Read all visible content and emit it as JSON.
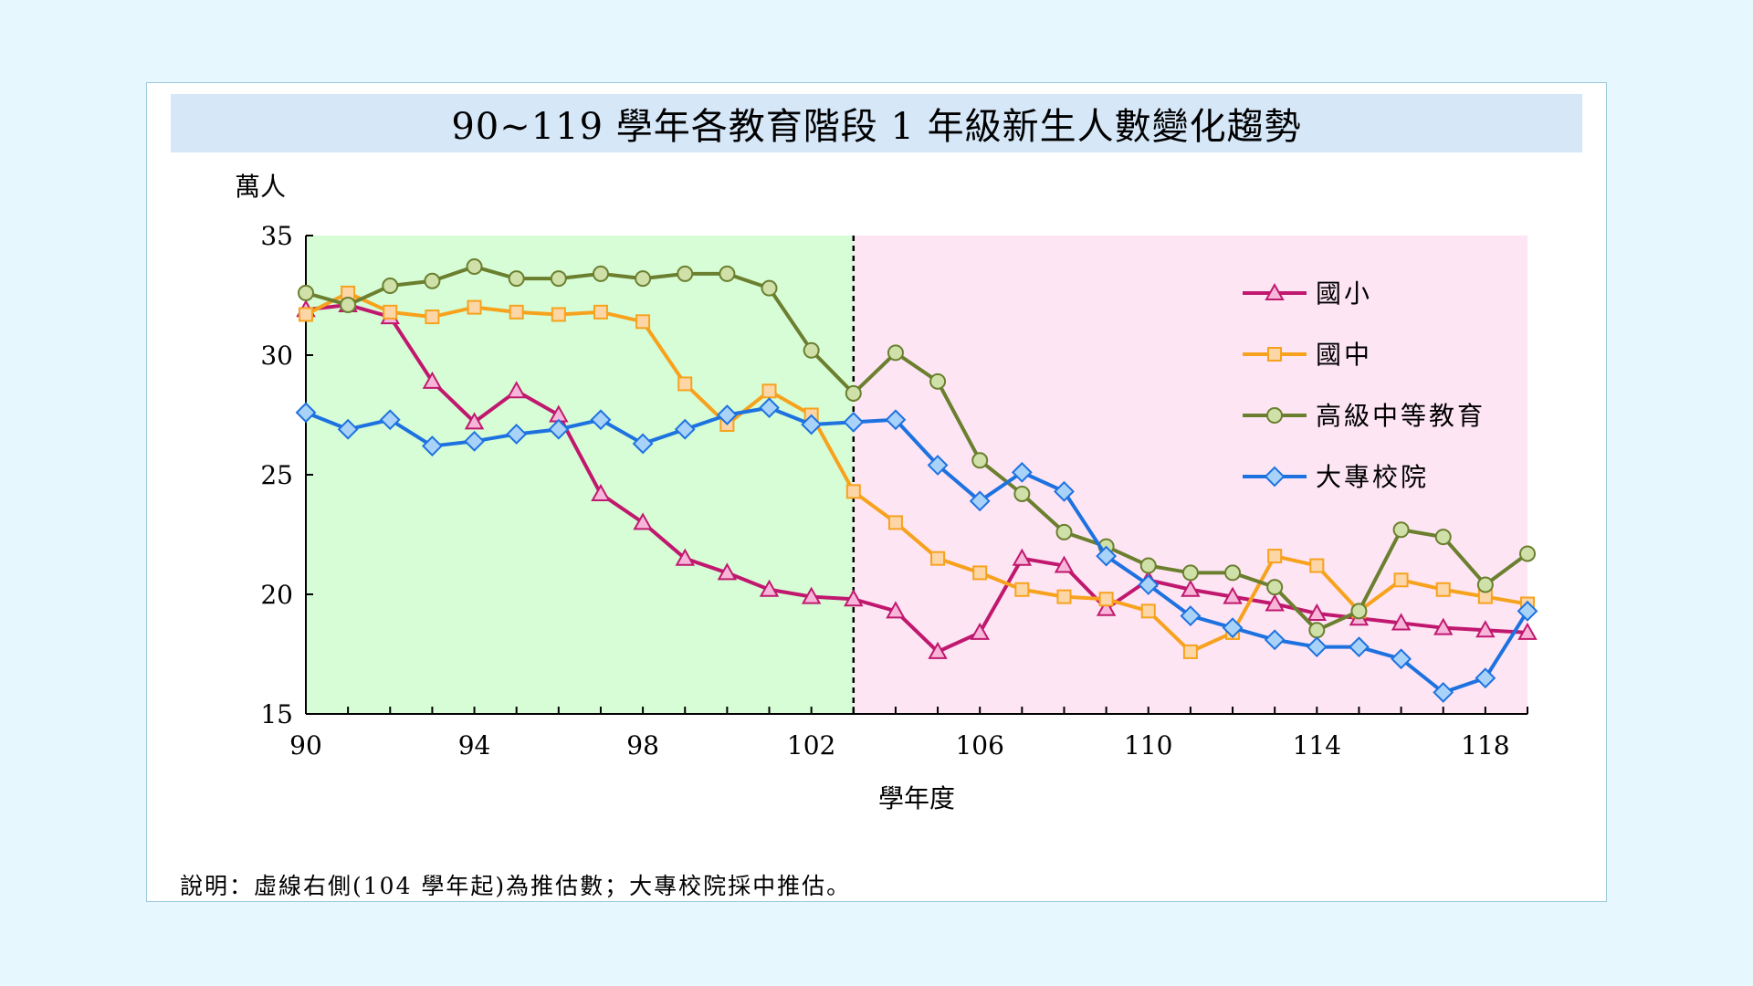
{
  "colors": {
    "page_bg": "#e6f7fd",
    "title_bg": "#d6e7f8",
    "history_region": "#d6fdd6",
    "projection_region": "#fde5f4",
    "primary": "#c0186e",
    "junior_high": "#f7a21d",
    "senior_high": "#6b7f2f",
    "college": "#1e72e0"
  },
  "chart_data": {
    "type": "line",
    "title": "90~119 學年各教育階段 1 年級新生人數變化趨勢",
    "ylabel": "萬人",
    "xlabel": "學年度",
    "ylim": [
      15,
      35
    ],
    "xlim": [
      90,
      119
    ],
    "y_ticks": [
      "35",
      "30",
      "25",
      "20",
      "15"
    ],
    "x_ticks": [
      "90",
      "94",
      "98",
      "102",
      "106",
      "110",
      "114",
      "118"
    ],
    "projection_start": 103,
    "legend_position": "top-right",
    "grid": false,
    "x": [
      90,
      91,
      92,
      93,
      94,
      95,
      96,
      97,
      98,
      99,
      100,
      101,
      102,
      103,
      104,
      105,
      106,
      107,
      108,
      109,
      110,
      111,
      112,
      113,
      114,
      115,
      116,
      117,
      118,
      119
    ],
    "series": [
      {
        "name": "國小",
        "color": "#c0186e",
        "marker": "triangle",
        "marker_fill": "#f7b6d9",
        "values": [
          31.9,
          32.1,
          31.6,
          28.9,
          27.2,
          28.5,
          27.5,
          24.2,
          23.0,
          21.5,
          20.9,
          20.2,
          19.9,
          19.8,
          19.3,
          17.6,
          18.4,
          21.5,
          21.2,
          19.4,
          20.6,
          20.2,
          19.9,
          19.6,
          19.2,
          19.0,
          18.8,
          18.6,
          18.5,
          18.4
        ]
      },
      {
        "name": "國中",
        "color": "#f7a21d",
        "marker": "square",
        "marker_fill": "#fdd6a8",
        "values": [
          31.7,
          32.6,
          31.8,
          31.6,
          32.0,
          31.8,
          31.7,
          31.8,
          31.4,
          28.8,
          27.1,
          28.5,
          27.5,
          24.3,
          23.0,
          21.5,
          20.9,
          20.2,
          19.9,
          19.8,
          19.3,
          17.6,
          18.4,
          21.6,
          21.2,
          19.3,
          20.6,
          20.2,
          19.9,
          19.6
        ]
      },
      {
        "name": "高級中等教育",
        "color": "#6b7f2f",
        "marker": "circle",
        "marker_fill": "#cfe0a8",
        "values": [
          32.6,
          32.1,
          32.9,
          33.1,
          33.7,
          33.2,
          33.2,
          33.4,
          33.2,
          33.4,
          33.4,
          32.8,
          30.2,
          28.4,
          30.1,
          28.9,
          25.6,
          24.2,
          22.6,
          22.0,
          21.2,
          20.9,
          20.9,
          20.3,
          18.5,
          19.3,
          22.7,
          22.4,
          20.4,
          21.7
        ]
      },
      {
        "name": "大專校院",
        "color": "#1e72e0",
        "marker": "diamond",
        "marker_fill": "#a8d2f7",
        "values": [
          27.6,
          26.9,
          27.3,
          26.2,
          26.4,
          26.7,
          26.9,
          27.3,
          26.3,
          26.9,
          27.5,
          27.8,
          27.1,
          27.2,
          27.3,
          25.4,
          23.9,
          25.1,
          24.3,
          21.6,
          20.4,
          19.1,
          18.6,
          18.1,
          17.8,
          17.8,
          17.3,
          15.9,
          16.5,
          19.3
        ]
      }
    ]
  },
  "note": "說明：虛線右側(104 學年起)為推估數；大專校院採中推估。"
}
